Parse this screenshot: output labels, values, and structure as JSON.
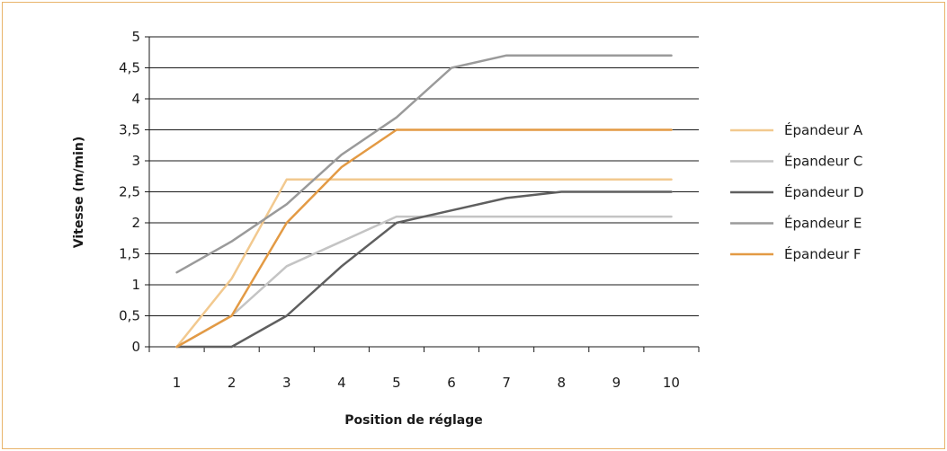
{
  "chart_data": {
    "type": "line",
    "title": "",
    "xlabel": "Position de réglage",
    "ylabel": "Vitesse (m/min)",
    "x": [
      1,
      2,
      3,
      4,
      5,
      6,
      7,
      8,
      9,
      10
    ],
    "x_tick_labels": [
      "1",
      "2",
      "3",
      "4",
      "5",
      "6",
      "7",
      "8",
      "9",
      "10"
    ],
    "ylim": [
      0,
      5
    ],
    "y_ticks": [
      0,
      0.5,
      1,
      1.5,
      2,
      2.5,
      3,
      3.5,
      4,
      4.5,
      5
    ],
    "y_tick_labels": [
      "0",
      "0,5",
      "1",
      "1,5",
      "2",
      "2,5",
      "3",
      "3,5",
      "4",
      "4,5",
      "5"
    ],
    "grid": "horizontal",
    "legend_position": "right",
    "series": [
      {
        "name": "Épandeur A",
        "color": "#f2c98f",
        "points": [
          [
            1,
            0
          ],
          [
            2,
            1.1
          ],
          [
            3,
            2.7
          ],
          [
            4,
            2.7
          ],
          [
            5,
            2.7
          ],
          [
            6,
            2.7
          ],
          [
            7,
            2.7
          ],
          [
            8,
            2.7
          ],
          [
            9,
            2.7
          ],
          [
            10,
            2.7
          ]
        ]
      },
      {
        "name": "Épandeur C",
        "color": "#c4c4c4",
        "points": [
          [
            1,
            0
          ],
          [
            2,
            0.5
          ],
          [
            3,
            1.3
          ],
          [
            4,
            1.7
          ],
          [
            5,
            2.1
          ],
          [
            6,
            2.1
          ],
          [
            7,
            2.1
          ],
          [
            8,
            2.1
          ],
          [
            9,
            2.1
          ],
          [
            10,
            2.1
          ]
        ]
      },
      {
        "name": "Épandeur D",
        "color": "#5f5f5f",
        "points": [
          [
            1,
            0
          ],
          [
            2,
            0
          ],
          [
            3,
            0.5
          ],
          [
            4,
            1.3
          ],
          [
            5,
            2.0
          ],
          [
            6,
            2.2
          ],
          [
            7,
            2.4
          ],
          [
            8,
            2.5
          ],
          [
            9,
            2.5
          ],
          [
            10,
            2.5
          ]
        ]
      },
      {
        "name": "Épandeur E",
        "color": "#9a9a9a",
        "points": [
          [
            1,
            1.2
          ],
          [
            2,
            1.7
          ],
          [
            3,
            2.3
          ],
          [
            4,
            3.1
          ],
          [
            5,
            3.7
          ],
          [
            6,
            4.5
          ],
          [
            7,
            4.7
          ],
          [
            8,
            4.7
          ],
          [
            9,
            4.7
          ],
          [
            10,
            4.7
          ]
        ]
      },
      {
        "name": "Épandeur F",
        "color": "#e39a44",
        "points": [
          [
            1,
            0
          ],
          [
            2,
            0.5
          ],
          [
            3,
            2.0
          ],
          [
            4,
            2.9
          ],
          [
            5,
            3.5
          ],
          [
            6,
            3.5
          ],
          [
            7,
            3.5
          ],
          [
            8,
            3.5
          ],
          [
            9,
            3.5
          ],
          [
            10,
            3.5
          ]
        ]
      }
    ]
  }
}
